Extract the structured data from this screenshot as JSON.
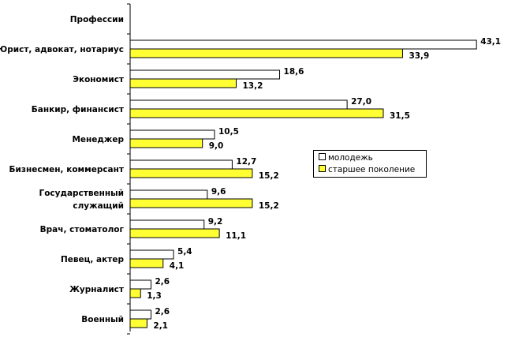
{
  "chart_data": {
    "type": "bar",
    "orientation": "horizontal",
    "axis_title": "Профессии",
    "categories": [
      "Юрист, адвокат, нотариус",
      "Экономист",
      "Банкир, финансист",
      "Менеджер",
      "Бизнесмен, коммерсант",
      "Государственный служащий",
      "Врач, стоматолог",
      "Певец, актер",
      "Журналист",
      "Военный"
    ],
    "category_lines": [
      [
        "Юрист, адвокат, нотариус"
      ],
      [
        "Экономист"
      ],
      [
        "Банкир, финансист"
      ],
      [
        "Менеджер"
      ],
      [
        "Бизнесмен, коммерсант"
      ],
      [
        "Государственный",
        "служащий"
      ],
      [
        "Врач, стоматолог"
      ],
      [
        "Певец, актер"
      ],
      [
        "Журналист"
      ],
      [
        "Военный"
      ]
    ],
    "series": [
      {
        "name": "молодежь",
        "color": "#ffffff",
        "values": [
          43.1,
          18.6,
          27.0,
          10.5,
          12.7,
          9.6,
          9.2,
          5.4,
          2.6,
          2.6
        ],
        "labels": [
          "43,1",
          "18,6",
          "27,0",
          "10,5",
          "12,7",
          "9,6",
          "9,2",
          "5,4",
          "2,6",
          "2,6"
        ]
      },
      {
        "name": "старшее поколение",
        "color": "#ffff33",
        "values": [
          33.9,
          13.2,
          31.5,
          9.0,
          15.2,
          15.2,
          11.1,
          4.1,
          1.3,
          2.1
        ],
        "labels": [
          "33,9",
          "13,2",
          "31,5",
          "9,0",
          "15,2",
          "15,2",
          "11,1",
          "4,1",
          "1,3",
          "2,1"
        ]
      }
    ],
    "xlim": [
      0,
      45
    ],
    "grid": false,
    "legend_position": "right-middle"
  }
}
